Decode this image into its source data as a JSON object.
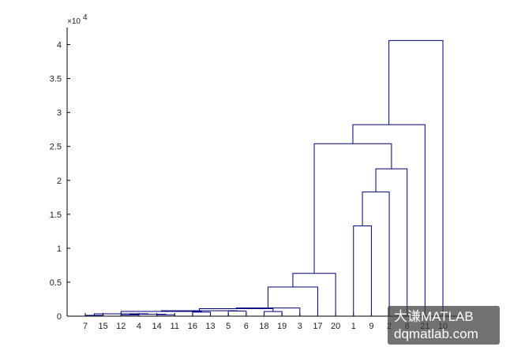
{
  "chart_data": {
    "type": "dendrogram",
    "leaves": [
      "7",
      "15",
      "12",
      "4",
      "14",
      "11",
      "16",
      "13",
      "5",
      "6",
      "18",
      "19",
      "3",
      "17",
      "20",
      "1",
      "9",
      "2",
      "8",
      "21",
      "10"
    ],
    "ylim": [
      0,
      42500
    ],
    "y_ticks": [
      0,
      5000,
      10000,
      15000,
      20000,
      25000,
      30000,
      35000,
      40000
    ],
    "y_tick_labels": [
      "0",
      "0.5",
      "1",
      "1.5",
      "2",
      "2.5",
      "3",
      "3.5",
      "4"
    ],
    "y_exponent_label": "×10",
    "y_exponent_power": "4",
    "line_color": "#00007f",
    "links": [
      {
        "a": "7",
        "b": "15",
        "height": 120
      },
      {
        "a": "12",
        "b": "4",
        "height": 170
      },
      {
        "a": "14",
        "b": "11",
        "height": 210
      },
      {
        "a": "L2",
        "b": "L3",
        "height": 280
      },
      {
        "a": "L1",
        "b": "L4",
        "height": 350
      },
      {
        "a": "16",
        "b": "13",
        "height": 600
      },
      {
        "a": "L5",
        "b": "L6",
        "height": 700
      },
      {
        "a": "5",
        "b": "6",
        "height": 760
      },
      {
        "a": "L7",
        "b": "L8",
        "height": 800
      },
      {
        "a": "18",
        "b": "19",
        "height": 680
      },
      {
        "a": "L9",
        "b": "L10",
        "height": 1100
      },
      {
        "a": "L11",
        "b": "3",
        "height": 1200
      },
      {
        "a": "L12",
        "b": "17",
        "height": 4300
      },
      {
        "a": "L13",
        "b": "20",
        "height": 6300
      },
      {
        "a": "1",
        "b": "9",
        "height": 13300
      },
      {
        "a": "L15",
        "b": "2",
        "height": 18300
      },
      {
        "a": "L16",
        "b": "8",
        "height": 21700
      },
      {
        "a": "L14",
        "b": "L17",
        "height": 25400
      },
      {
        "a": "L18",
        "b": "21",
        "height": 28200
      },
      {
        "a": "L19",
        "b": "10",
        "height": 40600
      }
    ]
  },
  "watermark": {
    "line1": "大谦MATLAB",
    "line2": "dqmatlab.com"
  }
}
